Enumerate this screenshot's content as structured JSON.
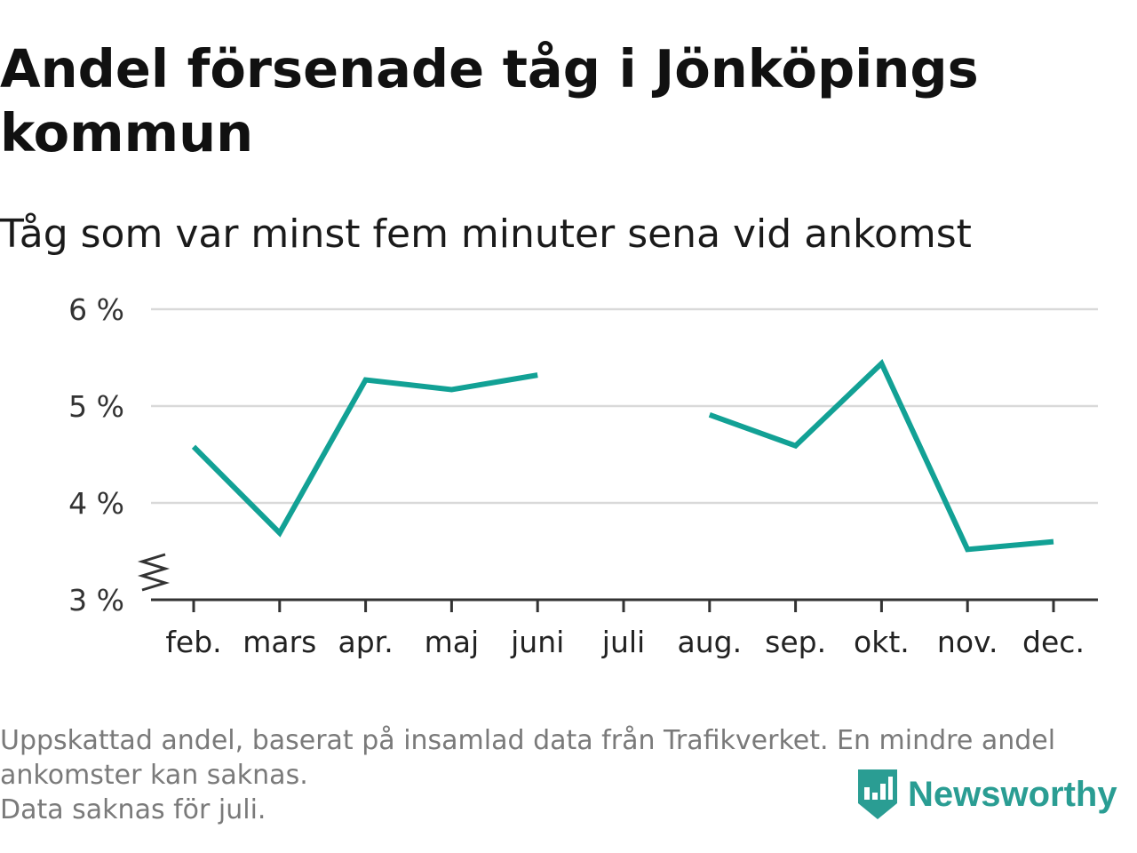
{
  "chart_data": {
    "type": "line",
    "title": "Andel försenade tåg i Jönköpings kommun",
    "subtitle": "Tåg som var minst fem minuter sena vid ankomst",
    "categories": [
      "feb.",
      "mars",
      "apr.",
      "maj",
      "juni",
      "juli",
      "aug.",
      "sep.",
      "okt.",
      "nov.",
      "dec."
    ],
    "series": [
      {
        "values": [
          4.58,
          3.69,
          5.27,
          5.17,
          5.32,
          null,
          4.91,
          4.59,
          5.44,
          3.52,
          3.6
        ]
      }
    ],
    "yticks": [
      3,
      4,
      5,
      6
    ],
    "ytick_labels": [
      "3 %",
      "4 %",
      "5 %",
      "6 %"
    ],
    "ylim": [
      3,
      6
    ],
    "y_axis_break": true,
    "grid": true,
    "legend": "none",
    "xlabel": "",
    "ylabel": "",
    "line_color": "#12a195",
    "grid_color": "#d9d9d9",
    "axis_color": "#333333"
  },
  "footnote": {
    "lines": [
      "Uppskattad andel, baserat på insamlad data från Trafikverket. En mindre andel",
      "ankomster kan saknas.",
      "Data saknas för juli."
    ]
  },
  "brand": {
    "name": "Newsworthy",
    "color": "#2a9d93",
    "icon": "newsworthy-logo-icon"
  }
}
